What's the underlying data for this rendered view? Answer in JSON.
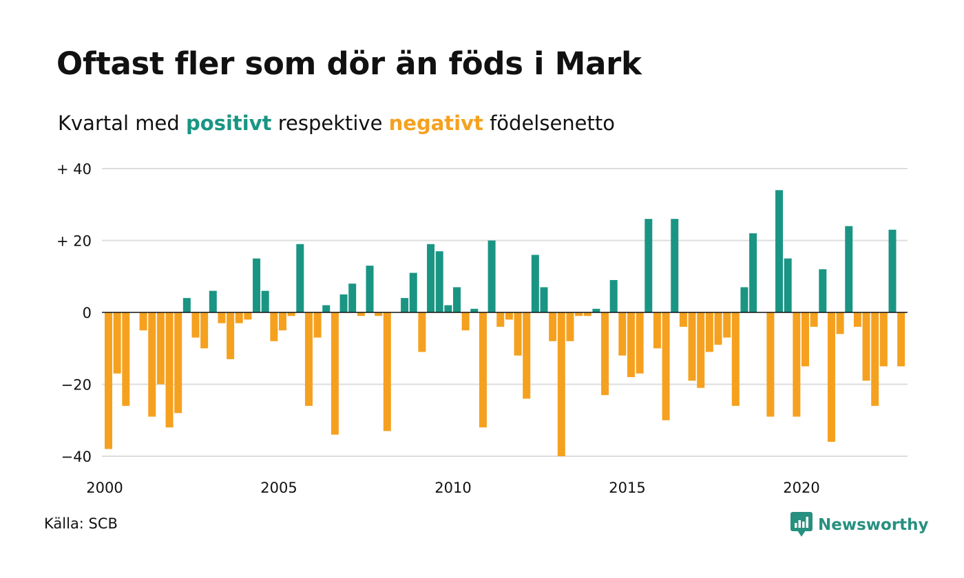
{
  "colors": {
    "positive": "#1a9583",
    "negative": "#f5a11f",
    "grid": "#dddddd",
    "brand": "#27907f"
  },
  "header": {
    "title": "Oftast fler som dör än föds i Mark",
    "subtitle_prefix": "Kvartal med",
    "subtitle_positive": "positivt",
    "subtitle_middle": "respektive",
    "subtitle_negative": "negativt",
    "subtitle_suffix": "födelsenetto"
  },
  "footer": {
    "source": "Källa: SCB",
    "brand": "Newsworthy",
    "brand_icon": "newsworthy-logo-icon"
  },
  "chart_data": {
    "type": "bar",
    "title": "Oftast fler som dör än föds i Mark",
    "subtitle": "Kvartal med positivt respektive negativt födelsenetto",
    "xlabel": "",
    "ylabel": "",
    "x_start": "2000 Q1",
    "x_ticks": [
      {
        "label": "2000",
        "year": 2000
      },
      {
        "label": "2005",
        "year": 2005
      },
      {
        "label": "2010",
        "year": 2010
      },
      {
        "label": "2015",
        "year": 2015
      },
      {
        "label": "2020",
        "year": 2020
      }
    ],
    "y_ticks": [
      {
        "value": 40,
        "label": "+ 40"
      },
      {
        "value": 20,
        "label": "+ 20"
      },
      {
        "value": 0,
        "label": "0"
      },
      {
        "value": -20,
        "label": "−20"
      },
      {
        "value": -40,
        "label": "−40"
      }
    ],
    "ylim": [
      -40,
      40
    ],
    "grid": true,
    "legend": "none",
    "values": [
      -38,
      -17,
      -26,
      0,
      -5,
      -29,
      -20,
      -32,
      -28,
      4,
      -7,
      -10,
      6,
      -3,
      -13,
      -3,
      -2,
      15,
      6,
      -8,
      -5,
      -1,
      19,
      -26,
      -7,
      2,
      -34,
      5,
      8,
      -1,
      13,
      -1,
      -33,
      0,
      4,
      11,
      -11,
      19,
      17,
      2,
      7,
      -5,
      1,
      -32,
      20,
      -4,
      -2,
      -12,
      -24,
      16,
      7,
      -8,
      -40,
      -8,
      -1,
      -1,
      1,
      -23,
      9,
      -12,
      -18,
      -17,
      26,
      -10,
      -30,
      26,
      -4,
      -19,
      -21,
      -11,
      -9,
      -7,
      -26,
      7,
      22,
      0,
      -29,
      34,
      15,
      -29,
      -15,
      -4,
      12,
      -36,
      -6,
      24,
      -4,
      -19,
      -26,
      -15,
      23,
      -15
    ]
  }
}
